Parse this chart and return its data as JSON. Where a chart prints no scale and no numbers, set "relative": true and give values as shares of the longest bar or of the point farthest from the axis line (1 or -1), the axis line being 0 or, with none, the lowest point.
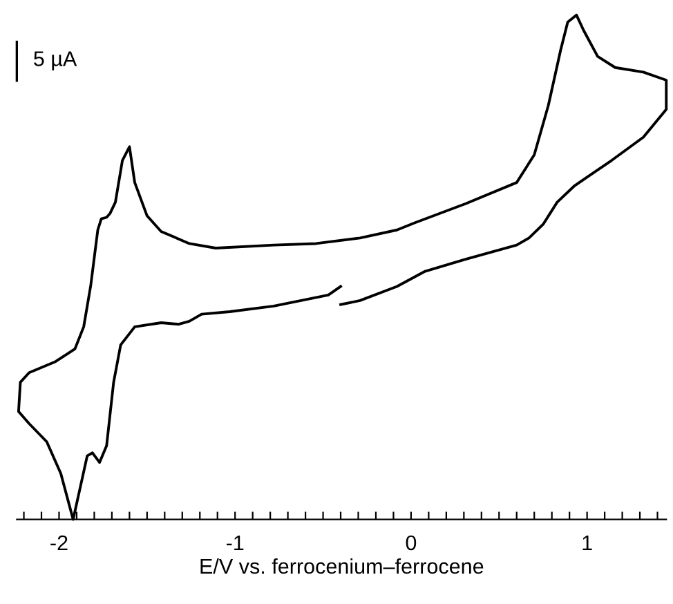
{
  "chart_data": {
    "type": "line",
    "relative": true,
    "xlabel": "E/V vs. ferrocenium–ferrocene",
    "annotations": [
      "5 µA"
    ],
    "xlim": [
      -2.24,
      1.45
    ],
    "xticks": [
      {
        "value": -2.2,
        "label": null
      },
      {
        "value": -2.1,
        "label": null
      },
      -2,
      {
        "value": -1.9,
        "label": null
      },
      {
        "value": -1.8,
        "label": null
      },
      {
        "value": -1.7,
        "label": null
      },
      {
        "value": -1.6,
        "label": null
      },
      {
        "value": -1.5,
        "label": null
      },
      {
        "value": -1.4,
        "label": null
      },
      {
        "value": -1.3,
        "label": null
      },
      {
        "value": -1.2,
        "label": null
      },
      {
        "value": -1.1,
        "label": null
      },
      -1,
      {
        "value": -0.9,
        "label": null
      },
      {
        "value": -0.8,
        "label": null
      },
      {
        "value": -0.7,
        "label": null
      },
      {
        "value": -0.6,
        "label": null
      },
      {
        "value": -0.5,
        "label": null
      },
      {
        "value": -0.4,
        "label": null
      },
      {
        "value": -0.3,
        "label": null
      },
      {
        "value": -0.2,
        "label": null
      },
      {
        "value": -0.1,
        "label": null
      },
      0,
      {
        "value": 0.1,
        "label": null
      },
      {
        "value": 0.2,
        "label": null
      },
      {
        "value": 0.3,
        "label": null
      },
      {
        "value": 0.4,
        "label": null
      },
      {
        "value": 0.5,
        "label": null
      },
      {
        "value": 0.6,
        "label": null
      },
      {
        "value": 0.7,
        "label": null
      },
      {
        "value": 0.8,
        "label": null
      },
      {
        "value": 0.9,
        "label": null
      },
      1,
      {
        "value": 1.1,
        "label": null
      },
      {
        "value": 1.2,
        "label": null
      },
      {
        "value": 1.3,
        "label": null
      },
      {
        "value": 1.4,
        "label": null
      }
    ],
    "grid": false,
    "legend": false,
    "series": [
      {
        "color": "#000000",
        "x": [
          -0.4,
          -0.29,
          -0.08,
          0.08,
          0.31,
          0.6,
          0.67,
          0.75,
          0.83,
          0.93,
          1.14,
          1.32,
          1.45,
          1.45,
          1.32,
          1.16,
          1.06,
          0.98,
          0.94,
          0.89,
          0.85,
          0.78,
          0.7,
          0.6,
          0.31,
          0.02,
          -0.08,
          -0.29,
          -0.54,
          -0.78,
          -1.11,
          -1.26,
          -1.42,
          -1.5,
          -1.57,
          -1.6,
          -1.64,
          -1.68,
          -1.71,
          -1.73,
          -1.76,
          -1.78,
          -1.82,
          -1.86,
          -1.91,
          -2.02,
          -2.17,
          -2.22,
          -2.23,
          -2.17,
          -2.07,
          -1.99,
          -1.92,
          -1.88,
          -1.84,
          -1.81,
          -1.77,
          -1.73,
          -1.69,
          -1.65,
          -1.57,
          -1.42,
          -1.32,
          -1.26,
          -1.19,
          -1.03,
          -0.78,
          -0.47,
          -0.4
        ],
        "values": [
          0.426,
          0.434,
          0.462,
          0.492,
          0.516,
          0.544,
          0.558,
          0.585,
          0.629,
          0.662,
          0.712,
          0.758,
          0.813,
          0.871,
          0.887,
          0.896,
          0.918,
          0.97,
          1.0,
          0.986,
          0.931,
          0.821,
          0.723,
          0.668,
          0.626,
          0.588,
          0.574,
          0.558,
          0.547,
          0.544,
          0.538,
          0.547,
          0.571,
          0.602,
          0.668,
          0.739,
          0.712,
          0.629,
          0.607,
          0.599,
          0.596,
          0.574,
          0.464,
          0.382,
          0.338,
          0.313,
          0.291,
          0.272,
          0.214,
          0.19,
          0.154,
          0.091,
          0.0,
          0.063,
          0.126,
          0.132,
          0.113,
          0.146,
          0.272,
          0.346,
          0.382,
          0.39,
          0.387,
          0.393,
          0.407,
          0.412,
          0.423,
          0.445,
          0.462
        ]
      }
    ]
  }
}
